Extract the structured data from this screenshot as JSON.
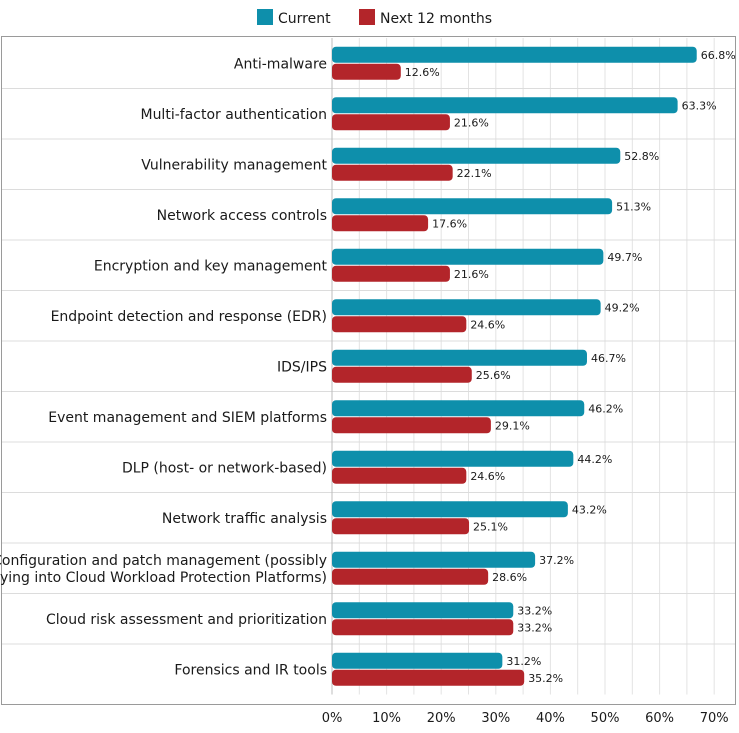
{
  "chart_data": {
    "type": "bar",
    "orientation": "horizontal",
    "categories": [
      "Anti-malware",
      "Multi-factor authentication",
      "Vulnerability management",
      "Network access controls",
      "Encryption and key management",
      "Endpoint detection and response (EDR)",
      "IDS/IPS",
      "Event management and SIEM platforms",
      "DLP (host- or network-based)",
      "Network traffic analysis",
      "Configuration and patch management (possibly\ntying into Cloud Workload Protection Platforms)",
      "Cloud risk assessment and prioritization",
      "Forensics and IR tools"
    ],
    "series": [
      {
        "name": "Current",
        "color": "#0e8fab",
        "values": [
          66.8,
          63.3,
          52.8,
          51.3,
          49.7,
          49.2,
          46.7,
          46.2,
          44.2,
          43.2,
          37.2,
          33.2,
          31.2
        ],
        "labels": [
          "66.8%",
          "63.3%",
          "52.8%",
          "51.3%",
          "49.7%",
          "49.2%",
          "46.7%",
          "46.2%",
          "44.2%",
          "43.2%",
          "37.2%",
          "33.2%",
          "31.2%"
        ]
      },
      {
        "name": "Next 12 months",
        "color": "#b3252a",
        "values": [
          12.6,
          21.6,
          22.1,
          17.6,
          21.6,
          24.6,
          25.6,
          29.1,
          24.6,
          25.1,
          28.6,
          33.2,
          35.2
        ],
        "labels": [
          "12.6%",
          "21.6%",
          "22.1%",
          "17.6%",
          "21.6%",
          "24.6%",
          "25.6%",
          "29.1%",
          "24.6%",
          "25.1%",
          "28.6%",
          "33.2%",
          "35.2%"
        ]
      }
    ],
    "xlim": [
      0,
      70
    ],
    "xticks": [
      0,
      10,
      20,
      30,
      40,
      50,
      60,
      70
    ],
    "xtick_labels": [
      "0%",
      "10%",
      "20%",
      "30%",
      "40%",
      "50%",
      "60%",
      "70%"
    ],
    "grid": true,
    "legend_position": "top-center",
    "title": "",
    "xlabel": "",
    "ylabel": ""
  }
}
